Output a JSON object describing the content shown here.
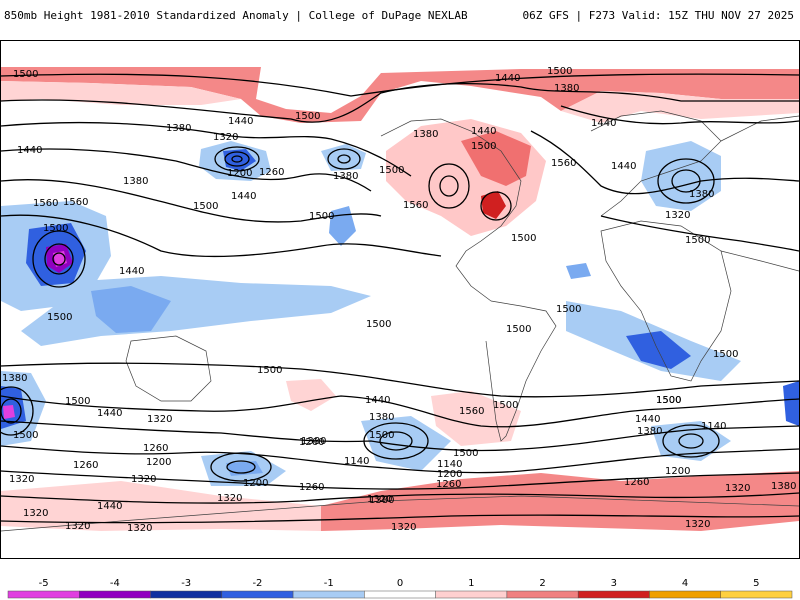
{
  "header": {
    "title_left": "850mb Height 1981-2010 Standardized Anomaly | College of DuPage NEXLAB",
    "title_right": "06Z GFS | F273 Valid: 15Z THU NOV 27 2025"
  },
  "map": {
    "contour_labels": [
      {
        "id": "l1",
        "text": "1500"
      },
      {
        "id": "l2",
        "text": "1440"
      },
      {
        "id": "l3",
        "text": "1500"
      },
      {
        "id": "l4",
        "text": "1380"
      },
      {
        "id": "l5",
        "text": "1500"
      },
      {
        "id": "l6",
        "text": "1440"
      },
      {
        "id": "l7",
        "text": "1380"
      },
      {
        "id": "l8",
        "text": "1320"
      },
      {
        "id": "l9",
        "text": "1440"
      },
      {
        "id": "l10",
        "text": "1200"
      },
      {
        "id": "l11",
        "text": "1260"
      },
      {
        "id": "l12",
        "text": "1380"
      },
      {
        "id": "l13",
        "text": "1440"
      },
      {
        "id": "l14",
        "text": "1380"
      },
      {
        "id": "l15",
        "text": "1500"
      },
      {
        "id": "l16",
        "text": "1560"
      },
      {
        "id": "l17",
        "text": "1560"
      },
      {
        "id": "l18",
        "text": "1500"
      },
      {
        "id": "l19",
        "text": "1440"
      },
      {
        "id": "l20",
        "text": "1500"
      },
      {
        "id": "l21",
        "text": "1500"
      },
      {
        "id": "l22",
        "text": "1380"
      },
      {
        "id": "l23",
        "text": "1500"
      },
      {
        "id": "l24",
        "text": "1560"
      },
      {
        "id": "l25",
        "text": "1500"
      },
      {
        "id": "l26",
        "text": "1440"
      },
      {
        "id": "l27",
        "text": "1560"
      },
      {
        "id": "l28",
        "text": "1440"
      },
      {
        "id": "l29",
        "text": "1320"
      },
      {
        "id": "l30",
        "text": "1500"
      },
      {
        "id": "l31",
        "text": "1380"
      },
      {
        "id": "l32",
        "text": "1440"
      },
      {
        "id": "l33",
        "text": "1500"
      },
      {
        "id": "l34",
        "text": "1500"
      },
      {
        "id": "l35",
        "text": "1500"
      },
      {
        "id": "l36",
        "text": "1500"
      },
      {
        "id": "l37",
        "text": "1500"
      },
      {
        "id": "l38",
        "text": "1500"
      },
      {
        "id": "l39",
        "text": "1500"
      },
      {
        "id": "l40",
        "text": "1500"
      },
      {
        "id": "l41",
        "text": "1500"
      },
      {
        "id": "l42",
        "text": "1500"
      },
      {
        "id": "l43",
        "text": "1500"
      },
      {
        "id": "l44",
        "text": "1380"
      },
      {
        "id": "l45",
        "text": "1440"
      },
      {
        "id": "l46",
        "text": "1320"
      },
      {
        "id": "l47",
        "text": "1260"
      },
      {
        "id": "l48",
        "text": "1200"
      },
      {
        "id": "l49",
        "text": "1260"
      },
      {
        "id": "l50",
        "text": "1320"
      },
      {
        "id": "l51",
        "text": "1320"
      },
      {
        "id": "l52",
        "text": "1380"
      },
      {
        "id": "l53",
        "text": "1260"
      },
      {
        "id": "l54",
        "text": "1140"
      },
      {
        "id": "l55",
        "text": "1200"
      },
      {
        "id": "l56",
        "text": "1260"
      },
      {
        "id": "l57",
        "text": "1320"
      },
      {
        "id": "l58",
        "text": "1380"
      },
      {
        "id": "l59",
        "text": "1440"
      },
      {
        "id": "l60",
        "text": "1320"
      },
      {
        "id": "l61",
        "text": "1440"
      },
      {
        "id": "l62",
        "text": "1380"
      },
      {
        "id": "l63",
        "text": "1320"
      },
      {
        "id": "l64",
        "text": "1560"
      },
      {
        "id": "l65",
        "text": "1500"
      },
      {
        "id": "l66",
        "text": "1140"
      },
      {
        "id": "l67",
        "text": "1200"
      },
      {
        "id": "l68",
        "text": "1260"
      },
      {
        "id": "l69",
        "text": "1320"
      },
      {
        "id": "l70",
        "text": "1320"
      },
      {
        "id": "l71",
        "text": "1320"
      },
      {
        "id": "l72",
        "text": "1260"
      },
      {
        "id": "l73",
        "text": "1200"
      },
      {
        "id": "l74",
        "text": "1320"
      },
      {
        "id": "l75",
        "text": "1380"
      },
      {
        "id": "l76",
        "text": "1140"
      },
      {
        "id": "l77",
        "text": "1500"
      },
      {
        "id": "l78",
        "text": "1440"
      },
      {
        "id": "l79",
        "text": "1380"
      },
      {
        "id": "l80",
        "text": "1320"
      }
    ]
  },
  "colorbar": {
    "ticks": [
      "-5",
      "-4",
      "-3",
      "-2",
      "-1",
      "0",
      "1",
      "2",
      "3",
      "4",
      "5"
    ],
    "colors": [
      "#e040e0",
      "#9000c0",
      "#1030a0",
      "#3060e0",
      "#a8ccf4",
      "#ffffff",
      "#ffd0d0",
      "#f08080",
      "#d02020",
      "#f0a000",
      "#ffd040"
    ]
  }
}
